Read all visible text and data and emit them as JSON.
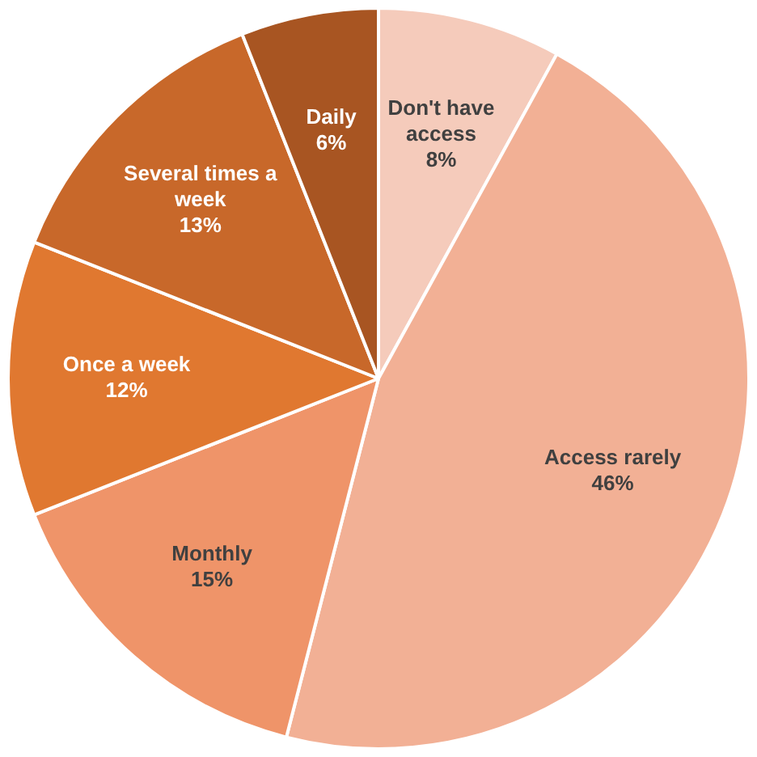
{
  "chart_data": {
    "type": "pie",
    "categories": [
      "Don't have access",
      "Access rarely",
      "Monthly",
      "Once a week",
      "Several times a week",
      "Daily"
    ],
    "values": [
      8,
      46,
      15,
      12,
      13,
      6
    ],
    "colors": [
      "#f5cbbb",
      "#f2b095",
      "#ef9469",
      "#e07830",
      "#c8682a",
      "#a85522"
    ],
    "value_labels": [
      "8%",
      "46%",
      "15%",
      "12%",
      "13%",
      "6%"
    ],
    "legend": false
  }
}
